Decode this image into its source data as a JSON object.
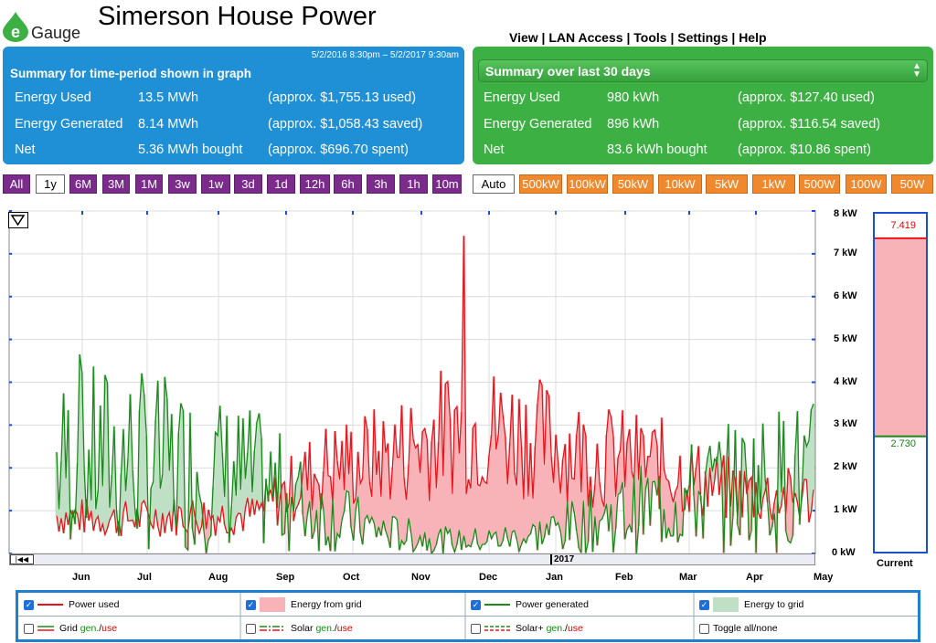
{
  "header": {
    "logo_text": "Gauge",
    "logo_letter": "e",
    "site_title": "Simerson House Power",
    "nav": [
      "View",
      "LAN Access",
      "Tools",
      "Settings",
      "Help"
    ]
  },
  "summary_period": {
    "range": "5/2/2016 8:30pm – 5/2/2017 9:30am",
    "title": "Summary for time-period shown in graph",
    "rows": [
      {
        "label": "Energy Used",
        "value": "13.5 MWh",
        "note": "(approx. $1,755.13 used)"
      },
      {
        "label": "Energy Generated",
        "value": "8.14 MWh",
        "note": "(approx. $1,058.43 saved)"
      },
      {
        "label": "Net",
        "value": "5.36 MWh bought",
        "note": "(approx. $696.70 spent)"
      }
    ]
  },
  "summary_30": {
    "select_label": "Summary over last 30 days",
    "rows": [
      {
        "label": "Energy Used",
        "value": "980 kWh",
        "note": "(approx. $127.40 used)"
      },
      {
        "label": "Energy Generated",
        "value": "896 kWh",
        "note": "(approx. $116.54 saved)"
      },
      {
        "label": "Net",
        "value": "83.6 kWh bought",
        "note": "(approx. $10.86 spent)"
      }
    ]
  },
  "time_buttons": [
    "All",
    "1y",
    "6M",
    "3M",
    "1M",
    "3w",
    "1w",
    "3d",
    "1d",
    "12h",
    "6h",
    "3h",
    "1h",
    "10m"
  ],
  "time_selected": "1y",
  "scale_buttons": [
    "Auto",
    "500kW",
    "100kW",
    "50kW",
    "10kW",
    "5kW",
    "1kW",
    "500W",
    "100W",
    "50W"
  ],
  "scale_selected": "Auto",
  "chart_data": {
    "type": "line",
    "x_months": [
      "Jun",
      "Jul",
      "Aug",
      "Sep",
      "Oct",
      "Nov",
      "Dec",
      "Jan",
      "Feb",
      "Mar",
      "Apr",
      "May"
    ],
    "y_ticks": [
      "0 kW",
      "1 kW",
      "2 kW",
      "3 kW",
      "4 kW",
      "5 kW",
      "6 kW",
      "7 kW",
      "8 kW"
    ],
    "ylim": [
      0,
      8
    ],
    "year_marker": "2017",
    "series": [
      {
        "name": "Power used",
        "color": "#e8141b",
        "monthly_typical_kw": [
          0.9,
          0.8,
          0.9,
          0.9,
          2.0,
          2.3,
          3.0,
          2.8,
          2.3,
          2.1,
          1.5,
          1.3
        ],
        "peak_kw": 7.42
      },
      {
        "name": "Power generated",
        "color": "#1a8a1a",
        "monthly_typical_kw": [
          2.2,
          2.4,
          2.1,
          1.8,
          1.0,
          0.5,
          0.3,
          0.4,
          0.8,
          1.2,
          1.6,
          1.9
        ],
        "peak_kw": 4.65
      }
    ],
    "current": {
      "label": "Current",
      "used": "7.419",
      "generated": "2.730",
      "used_kw": 7.419,
      "generated_kw": 2.73
    }
  },
  "legend": {
    "row1": [
      {
        "label": "Power used",
        "checked": true
      },
      {
        "label": "Energy from grid",
        "checked": true
      },
      {
        "label": "Power generated",
        "checked": true
      },
      {
        "label": "Energy to grid",
        "checked": true
      }
    ],
    "row2": [
      {
        "label": "Grid",
        "gen": "gen.",
        "sep": "/",
        "use": "use",
        "checked": false
      },
      {
        "label": "Solar",
        "gen": "gen.",
        "sep": "/",
        "use": "use",
        "checked": false
      },
      {
        "label": "Solar+",
        "gen": "gen.",
        "sep": "/",
        "use": "use",
        "checked": false
      },
      {
        "label": "Toggle all/none",
        "checked": false
      }
    ]
  },
  "colors": {
    "blue_panel": "#1f8fd6",
    "green_panel": "#3cb043",
    "time_button": "#7b2b8c",
    "scale_button": "#f0892e",
    "grid_fill": "#f7b3b8",
    "to_grid_fill": "#bfe0c4"
  }
}
